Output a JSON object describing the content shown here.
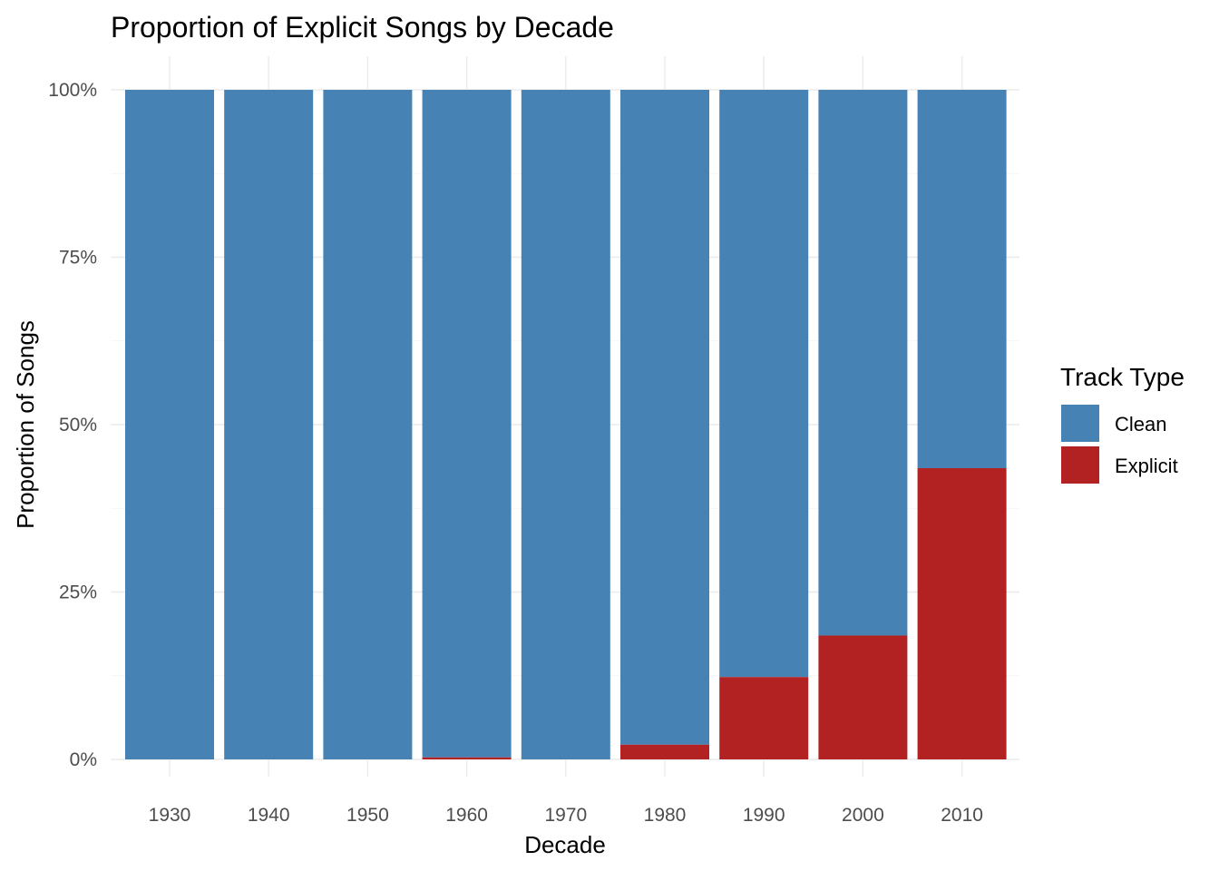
{
  "chart_data": {
    "type": "bar",
    "stacked": true,
    "position": "fill",
    "title": "Proportion of Explicit Songs by Decade",
    "xlabel": "Decade",
    "ylabel": "Proportion of Songs",
    "categories": [
      "1930",
      "1940",
      "1950",
      "1960",
      "1970",
      "1980",
      "1990",
      "2000",
      "2010"
    ],
    "series": [
      {
        "name": "Clean",
        "color": "#4682B4",
        "values": [
          1.0,
          1.0,
          1.0,
          0.997,
          1.0,
          0.978,
          0.877,
          0.815,
          0.565
        ]
      },
      {
        "name": "Explicit",
        "color": "#B22222",
        "values": [
          0.0,
          0.0,
          0.0,
          0.003,
          0.0,
          0.022,
          0.123,
          0.185,
          0.435
        ]
      }
    ],
    "ylim": [
      0,
      1
    ],
    "yticks": [
      0,
      0.25,
      0.5,
      0.75,
      1.0
    ],
    "ytick_labels": [
      "0%",
      "25%",
      "50%",
      "75%",
      "100%"
    ],
    "grid": true,
    "legend": {
      "title": "Track Type",
      "placement": "right",
      "entries": [
        "Clean",
        "Explicit"
      ]
    }
  }
}
